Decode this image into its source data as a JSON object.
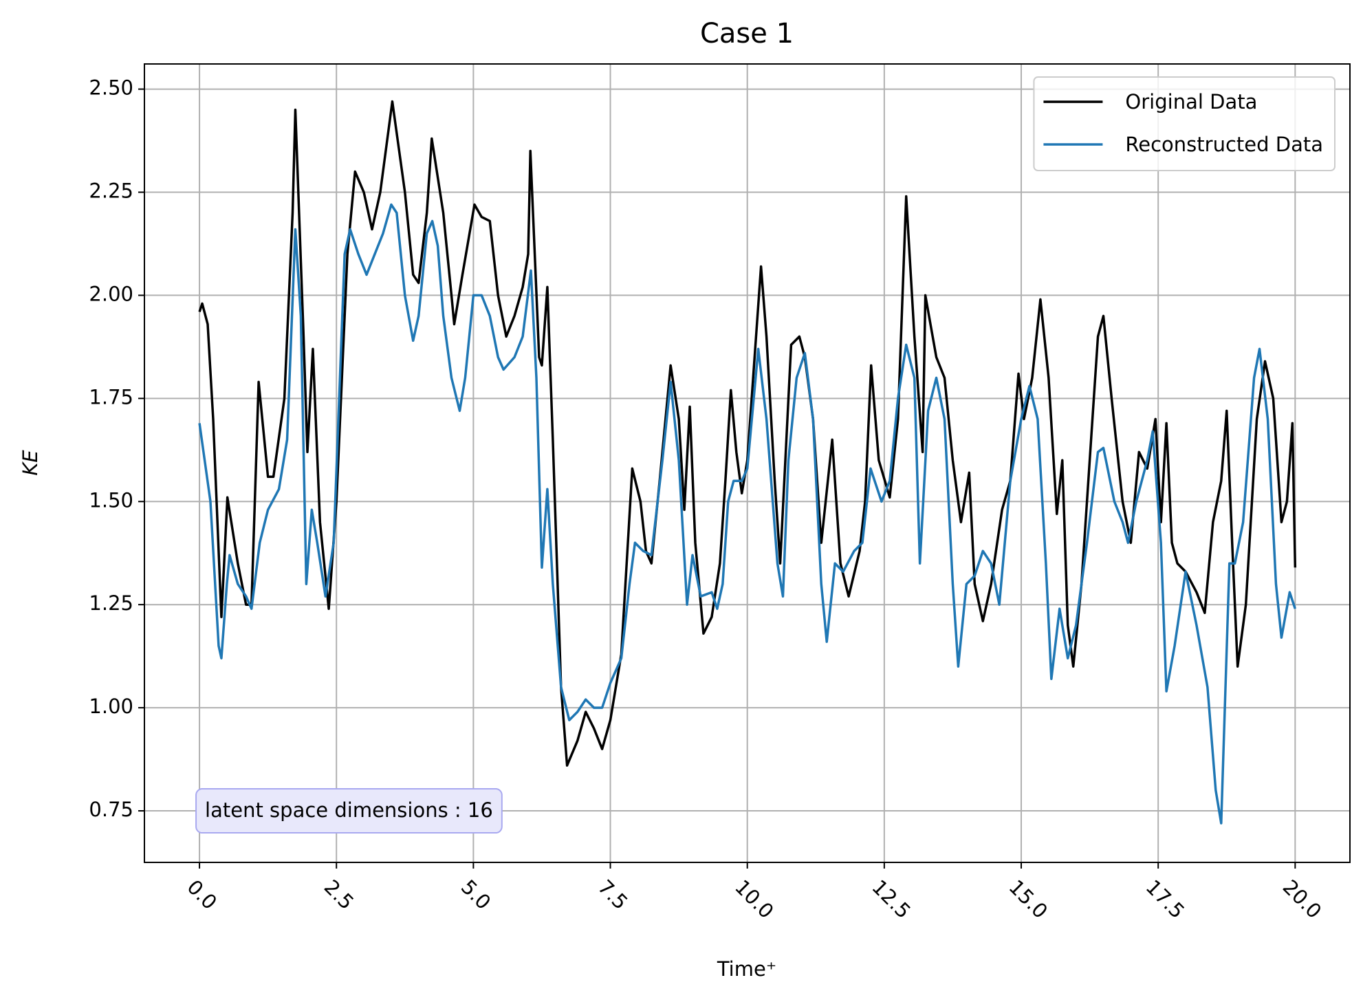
{
  "chart_data": {
    "type": "line",
    "title": "Case 1",
    "xlabel": "Time⁺",
    "ylabel": "KE",
    "xlim": [
      -1.005,
      21.0
    ],
    "ylim": [
      0.625,
      2.561
    ],
    "xticks": [
      {
        "value": 0,
        "label": "0.0"
      },
      2.5,
      {
        "value": 5,
        "label": "5.0"
      },
      7.5,
      {
        "value": 10,
        "label": "10.0"
      },
      12.5,
      {
        "value": 15,
        "label": "15.0"
      },
      17.5,
      {
        "value": 20,
        "label": "20.0"
      }
    ],
    "yticks": [
      0.75,
      {
        "value": 1,
        "label": "1.00"
      },
      1.25,
      {
        "value": 1.5,
        "label": "1.50"
      },
      1.75,
      {
        "value": 2,
        "label": "2.00"
      },
      2.25,
      {
        "value": 2.5,
        "label": "2.50"
      }
    ],
    "grid": true,
    "legend": "upper right",
    "annotation": {
      "text": "latent space dimensions : 16",
      "x": 0,
      "y": 0.75
    },
    "series": [
      {
        "name": "Original Data",
        "color": "#000000",
        "x": [
          0,
          0.05,
          0.15,
          0.25,
          0.4,
          0.45,
          0.51,
          0.7,
          0.85,
          0.95,
          1.08,
          1.25,
          1.35,
          1.55,
          1.7,
          1.75,
          1.9,
          1.97,
          2.07,
          2.2,
          2.36,
          2.5,
          2.7,
          2.84,
          3.0,
          3.15,
          3.3,
          3.52,
          3.75,
          3.9,
          4.0,
          4.15,
          4.24,
          4.45,
          4.6,
          4.65,
          4.8,
          5.02,
          5.15,
          5.3,
          5.45,
          5.6,
          5.75,
          5.9,
          6.0,
          6.04,
          6.2,
          6.25,
          6.35,
          6.45,
          6.6,
          6.71,
          6.9,
          7.05,
          7.2,
          7.35,
          7.5,
          7.7,
          7.9,
          8.05,
          8.15,
          8.25,
          8.4,
          8.6,
          8.75,
          8.85,
          8.95,
          9.05,
          9.2,
          9.35,
          9.5,
          9.6,
          9.7,
          9.8,
          9.9,
          10.0,
          10.25,
          10.35,
          10.5,
          10.6,
          10.8,
          10.95,
          11.05,
          11.2,
          11.35,
          11.55,
          11.7,
          11.85,
          12.05,
          12.15,
          12.26,
          12.4,
          12.6,
          12.75,
          12.9,
          13.05,
          13.2,
          13.25,
          13.45,
          13.6,
          13.75,
          13.9,
          14.05,
          14.15,
          14.3,
          14.45,
          14.65,
          14.8,
          14.95,
          15.05,
          15.2,
          15.35,
          15.5,
          15.65,
          15.75,
          15.85,
          15.95,
          16.1,
          16.25,
          16.4,
          16.5,
          16.65,
          16.85,
          17.0,
          17.15,
          17.3,
          17.45,
          17.55,
          17.65,
          17.75,
          17.85,
          18.0,
          18.2,
          18.35,
          18.5,
          18.65,
          18.75,
          18.85,
          18.95,
          19.1,
          19.3,
          19.45,
          19.6,
          19.75,
          19.85,
          19.95,
          20.0
        ],
        "values": [
          1.96,
          1.98,
          1.93,
          1.7,
          1.22,
          1.35,
          1.51,
          1.35,
          1.25,
          1.25,
          1.79,
          1.56,
          1.56,
          1.75,
          2.2,
          2.45,
          1.9,
          1.62,
          1.87,
          1.45,
          1.24,
          1.5,
          2.1,
          2.3,
          2.25,
          2.16,
          2.25,
          2.47,
          2.25,
          2.05,
          2.03,
          2.2,
          2.38,
          2.2,
          2.0,
          1.93,
          2.05,
          2.22,
          2.19,
          2.18,
          2.0,
          1.9,
          1.95,
          2.02,
          2.1,
          2.35,
          1.85,
          1.83,
          2.02,
          1.65,
          1.05,
          0.86,
          0.92,
          0.99,
          0.95,
          0.9,
          0.97,
          1.13,
          1.58,
          1.5,
          1.38,
          1.35,
          1.55,
          1.83,
          1.7,
          1.48,
          1.73,
          1.4,
          1.18,
          1.22,
          1.35,
          1.55,
          1.77,
          1.62,
          1.52,
          1.6,
          2.07,
          1.9,
          1.55,
          1.35,
          1.88,
          1.9,
          1.85,
          1.7,
          1.4,
          1.65,
          1.35,
          1.27,
          1.38,
          1.5,
          1.83,
          1.6,
          1.51,
          1.7,
          2.24,
          1.9,
          1.62,
          2.0,
          1.85,
          1.8,
          1.6,
          1.45,
          1.57,
          1.3,
          1.21,
          1.3,
          1.48,
          1.55,
          1.81,
          1.7,
          1.8,
          1.99,
          1.8,
          1.47,
          1.6,
          1.2,
          1.1,
          1.3,
          1.6,
          1.9,
          1.95,
          1.75,
          1.5,
          1.4,
          1.62,
          1.58,
          1.7,
          1.45,
          1.69,
          1.4,
          1.35,
          1.33,
          1.28,
          1.23,
          1.45,
          1.55,
          1.72,
          1.4,
          1.1,
          1.25,
          1.7,
          1.84,
          1.75,
          1.45,
          1.5,
          1.69,
          1.34
        ]
      },
      {
        "name": "Reconstructed Data",
        "color": "#1f77b4",
        "x": [
          0,
          0.2,
          0.35,
          0.4,
          0.5,
          0.55,
          0.7,
          0.85,
          0.95,
          1.1,
          1.25,
          1.45,
          1.6,
          1.75,
          1.85,
          1.95,
          2.05,
          2.15,
          2.3,
          2.45,
          2.65,
          2.75,
          2.9,
          3.05,
          3.2,
          3.35,
          3.5,
          3.6,
          3.75,
          3.9,
          4.0,
          4.15,
          4.25,
          4.35,
          4.45,
          4.6,
          4.75,
          4.85,
          5.0,
          5.15,
          5.3,
          5.45,
          5.55,
          5.75,
          5.9,
          6.05,
          6.15,
          6.25,
          6.35,
          6.45,
          6.6,
          6.75,
          6.9,
          7.05,
          7.2,
          7.35,
          7.5,
          7.7,
          7.85,
          7.95,
          8.1,
          8.25,
          8.45,
          8.6,
          8.75,
          8.9,
          9.0,
          9.15,
          9.35,
          9.45,
          9.55,
          9.65,
          9.75,
          9.9,
          10.0,
          10.2,
          10.35,
          10.55,
          10.65,
          10.75,
          10.9,
          11.05,
          11.2,
          11.35,
          11.45,
          11.6,
          11.75,
          11.95,
          12.1,
          12.25,
          12.45,
          12.6,
          12.75,
          12.9,
          13.05,
          13.15,
          13.3,
          13.45,
          13.6,
          13.75,
          13.85,
          14.0,
          14.15,
          14.3,
          14.45,
          14.6,
          14.8,
          15.0,
          15.15,
          15.3,
          15.45,
          15.55,
          15.7,
          15.85,
          16.0,
          16.2,
          16.4,
          16.5,
          16.7,
          16.85,
          16.95,
          17.1,
          17.3,
          17.4,
          17.55,
          17.65,
          17.8,
          18.0,
          18.2,
          18.4,
          18.55,
          18.65,
          18.8,
          18.9,
          19.05,
          19.25,
          19.35,
          19.5,
          19.65,
          19.75,
          19.9,
          20.0
        ],
        "values": [
          1.69,
          1.5,
          1.15,
          1.12,
          1.3,
          1.37,
          1.3,
          1.27,
          1.24,
          1.4,
          1.48,
          1.53,
          1.65,
          2.16,
          1.95,
          1.3,
          1.48,
          1.4,
          1.27,
          1.4,
          2.1,
          2.16,
          2.1,
          2.05,
          2.1,
          2.15,
          2.22,
          2.2,
          2.0,
          1.89,
          1.95,
          2.15,
          2.18,
          2.12,
          1.95,
          1.8,
          1.72,
          1.8,
          2.0,
          2.0,
          1.95,
          1.85,
          1.82,
          1.85,
          1.9,
          2.06,
          1.8,
          1.34,
          1.53,
          1.3,
          1.05,
          0.97,
          0.99,
          1.02,
          1.0,
          1.0,
          1.06,
          1.12,
          1.3,
          1.4,
          1.38,
          1.37,
          1.6,
          1.79,
          1.6,
          1.25,
          1.37,
          1.27,
          1.28,
          1.24,
          1.3,
          1.5,
          1.55,
          1.55,
          1.58,
          1.87,
          1.7,
          1.35,
          1.27,
          1.6,
          1.8,
          1.86,
          1.7,
          1.3,
          1.16,
          1.35,
          1.33,
          1.38,
          1.4,
          1.58,
          1.5,
          1.55,
          1.75,
          1.88,
          1.8,
          1.35,
          1.72,
          1.8,
          1.7,
          1.3,
          1.1,
          1.3,
          1.32,
          1.38,
          1.35,
          1.25,
          1.55,
          1.7,
          1.78,
          1.7,
          1.35,
          1.07,
          1.24,
          1.12,
          1.2,
          1.4,
          1.62,
          1.63,
          1.5,
          1.45,
          1.4,
          1.5,
          1.6,
          1.67,
          1.4,
          1.04,
          1.15,
          1.33,
          1.2,
          1.05,
          0.8,
          0.72,
          1.35,
          1.35,
          1.45,
          1.8,
          1.87,
          1.7,
          1.3,
          1.17,
          1.28,
          1.24
        ]
      }
    ]
  }
}
